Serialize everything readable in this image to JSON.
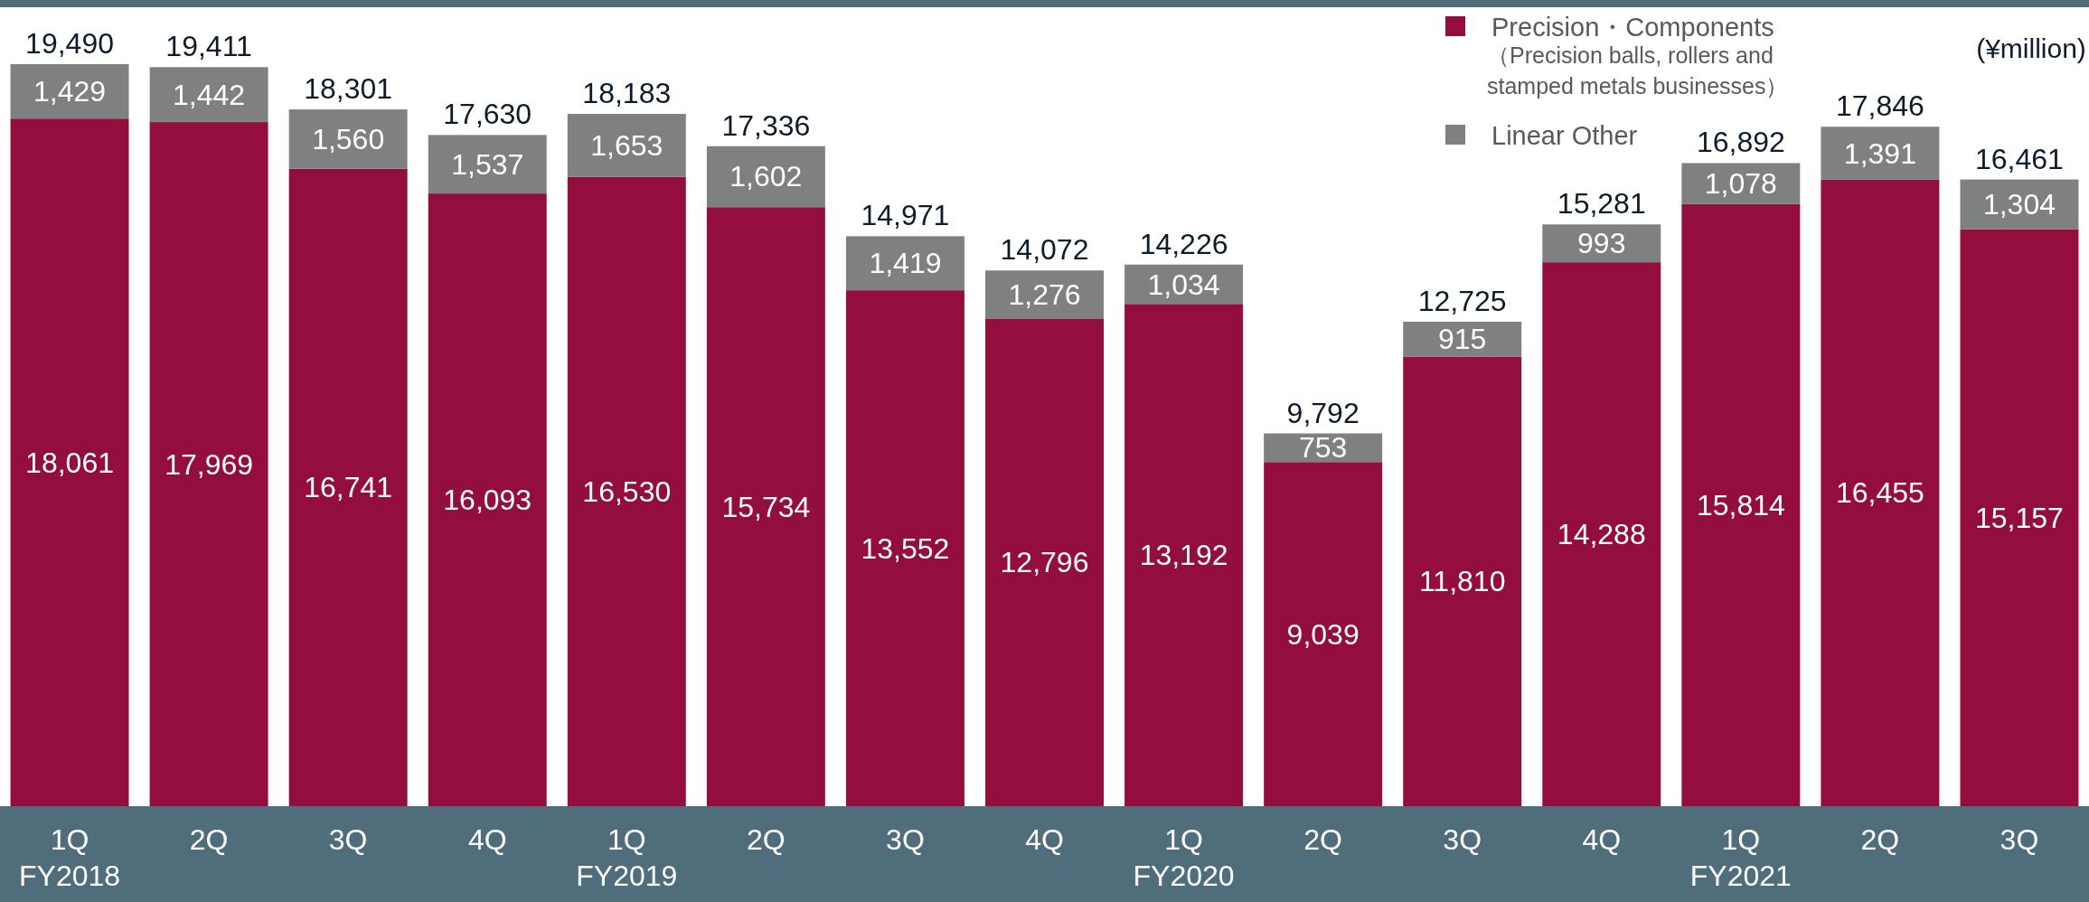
{
  "chart_data": {
    "type": "bar",
    "stacked": true,
    "legend": "top right",
    "categories": [
      "1Q\nFY2018",
      "2Q",
      "3Q",
      "4Q",
      "1Q\nFY2019",
      "2Q",
      "3Q",
      "4Q",
      "1Q\nFY2020",
      "2Q",
      "3Q",
      "4Q",
      "1Q\nFY2021",
      "2Q",
      "3Q"
    ],
    "series": [
      {
        "name": "Precision・Components\n（Precision balls, rollers and\n stamped metals businesses）",
        "color": "#930d3f",
        "values": [
          18061,
          17969,
          16741,
          16093,
          16530,
          15734,
          13552,
          12796,
          13192,
          9039,
          11810,
          14288,
          15814,
          16455,
          15157
        ],
        "value_labels": [
          "18,061",
          "17,969",
          "16,741",
          "16,093",
          "16,530",
          "15,734",
          "13,552",
          "12,796",
          "13,192",
          "9,039",
          "11,810",
          "14,288",
          "15,814",
          "16,455",
          "15,157"
        ]
      },
      {
        "name": "Linear Other",
        "color": "#7f8080",
        "values": [
          1429,
          1442,
          1560,
          1537,
          1653,
          1602,
          1419,
          1276,
          1034,
          753,
          915,
          993,
          1078,
          1391,
          1304
        ],
        "value_labels": [
          "1,429",
          "1,442",
          "1,560",
          "1,537",
          "1,653",
          "1,602",
          "1,419",
          "1,276",
          "1,034",
          "753",
          "915",
          "993",
          "1,078",
          "1,391",
          "1,304"
        ]
      }
    ],
    "totals": [
      "19,490",
      "19,411",
      "18,301",
      "17,630",
      "18,183",
      "17,336",
      "14,971",
      "14,072",
      "14,226",
      "9,792",
      "12,725",
      "15,281",
      "16,892",
      "17,846",
      "16,461"
    ],
    "annotations": [
      "(¥million)"
    ]
  }
}
